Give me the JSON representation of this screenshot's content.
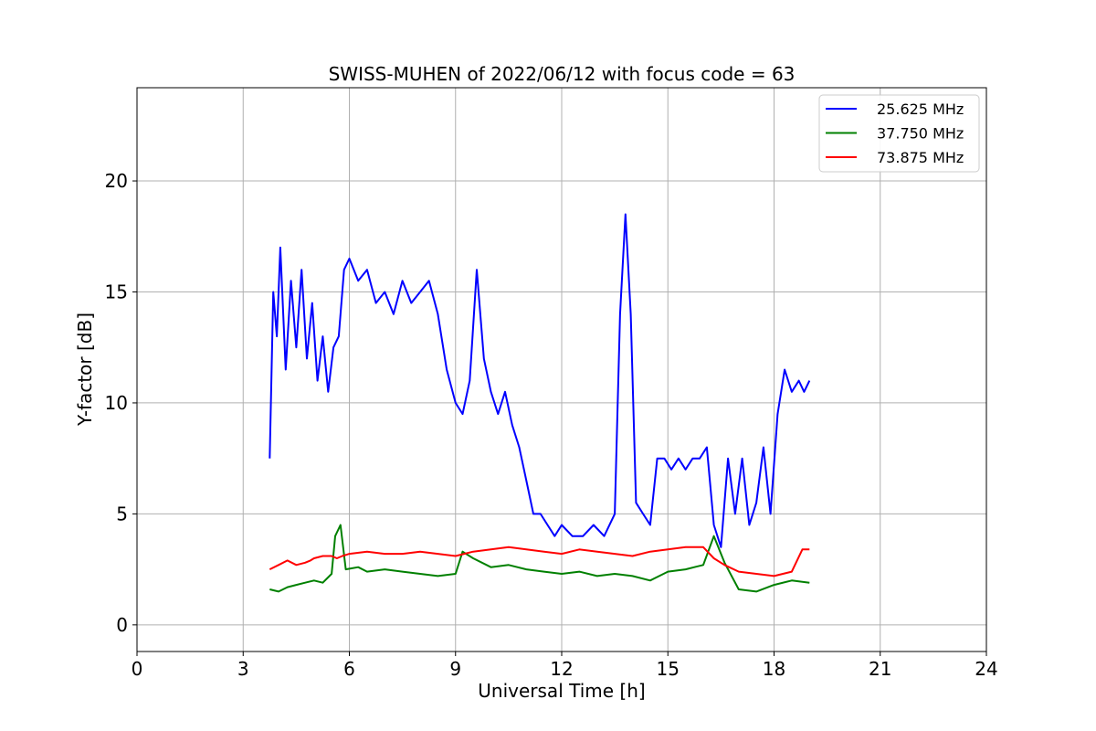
{
  "chart_data": {
    "type": "line",
    "title": "SWISS-MUHEN of 2022/06/12 with focus code = 63",
    "xlabel": "Universal Time [h]",
    "ylabel": "Y-factor [dB]",
    "xlim": [
      0,
      24
    ],
    "ylim": [
      -1.2,
      24.2
    ],
    "xticks": [
      0,
      3,
      6,
      9,
      12,
      15,
      18,
      21,
      24
    ],
    "yticks": [
      0,
      5,
      10,
      15,
      20
    ],
    "grid": true,
    "legend_position": "top-right",
    "series": [
      {
        "name": "25.625 MHz",
        "color": "#0000ff",
        "x": [
          3.75,
          3.85,
          3.95,
          4.05,
          4.2,
          4.35,
          4.5,
          4.65,
          4.8,
          4.95,
          5.1,
          5.25,
          5.4,
          5.55,
          5.7,
          5.85,
          6.0,
          6.25,
          6.5,
          6.75,
          7.0,
          7.25,
          7.5,
          7.75,
          8.0,
          8.25,
          8.5,
          8.75,
          9.0,
          9.2,
          9.4,
          9.6,
          9.8,
          10.0,
          10.2,
          10.4,
          10.6,
          10.8,
          11.0,
          11.2,
          11.4,
          11.6,
          11.8,
          12.0,
          12.3,
          12.6,
          12.9,
          13.2,
          13.5,
          13.65,
          13.8,
          13.95,
          14.1,
          14.3,
          14.5,
          14.7,
          14.9,
          15.1,
          15.3,
          15.5,
          15.7,
          15.9,
          16.1,
          16.3,
          16.5,
          16.7,
          16.9,
          17.1,
          17.3,
          17.5,
          17.7,
          17.9,
          18.1,
          18.3,
          18.5,
          18.7,
          18.85,
          19.0
        ],
        "y": [
          7.5,
          15.0,
          13.0,
          17.0,
          11.5,
          15.5,
          12.5,
          16.0,
          12.0,
          14.5,
          11.0,
          13.0,
          10.5,
          12.5,
          13.0,
          16.0,
          16.5,
          15.5,
          16.0,
          14.5,
          15.0,
          14.0,
          15.5,
          14.5,
          15.0,
          15.5,
          14.0,
          11.5,
          10.0,
          9.5,
          11.0,
          16.0,
          12.0,
          10.5,
          9.5,
          10.5,
          9.0,
          8.0,
          6.5,
          5.0,
          5.0,
          4.5,
          4.0,
          4.5,
          4.0,
          4.0,
          4.5,
          4.0,
          5.0,
          14.0,
          18.5,
          14.0,
          5.5,
          5.0,
          4.5,
          7.5,
          7.5,
          7.0,
          7.5,
          7.0,
          7.5,
          7.5,
          8.0,
          4.5,
          3.5,
          7.5,
          5.0,
          7.5,
          4.5,
          5.5,
          8.0,
          5.0,
          9.5,
          11.5,
          10.5,
          11.0,
          10.5,
          11.0
        ]
      },
      {
        "name": "37.750 MHz",
        "color": "#008000",
        "x": [
          3.75,
          4.0,
          4.25,
          4.5,
          4.75,
          5.0,
          5.25,
          5.5,
          5.6,
          5.75,
          5.9,
          6.25,
          6.5,
          7.0,
          7.5,
          8.0,
          8.5,
          9.0,
          9.2,
          9.5,
          10.0,
          10.5,
          11.0,
          11.5,
          12.0,
          12.5,
          13.0,
          13.5,
          14.0,
          14.5,
          15.0,
          15.5,
          16.0,
          16.3,
          16.6,
          17.0,
          17.5,
          18.0,
          18.5,
          19.0
        ],
        "y": [
          1.6,
          1.5,
          1.7,
          1.8,
          1.9,
          2.0,
          1.9,
          2.3,
          4.0,
          4.5,
          2.5,
          2.6,
          2.4,
          2.5,
          2.4,
          2.3,
          2.2,
          2.3,
          3.3,
          3.0,
          2.6,
          2.7,
          2.5,
          2.4,
          2.3,
          2.4,
          2.2,
          2.3,
          2.2,
          2.0,
          2.4,
          2.5,
          2.7,
          4.0,
          2.8,
          1.6,
          1.5,
          1.8,
          2.0,
          1.9
        ]
      },
      {
        "name": "73.875 MHz",
        "color": "#ff0000",
        "x": [
          3.75,
          4.0,
          4.25,
          4.5,
          4.75,
          4.9,
          5.0,
          5.25,
          5.5,
          5.65,
          5.8,
          6.0,
          6.5,
          7.0,
          7.5,
          8.0,
          8.5,
          9.0,
          9.5,
          10.0,
          10.5,
          11.0,
          11.5,
          12.0,
          12.5,
          13.0,
          13.5,
          14.0,
          14.5,
          15.0,
          15.5,
          16.0,
          16.3,
          16.6,
          17.0,
          17.5,
          18.0,
          18.5,
          18.8,
          19.0
        ],
        "y": [
          2.5,
          2.7,
          2.9,
          2.7,
          2.8,
          2.9,
          3.0,
          3.1,
          3.1,
          3.0,
          3.1,
          3.2,
          3.3,
          3.2,
          3.2,
          3.3,
          3.2,
          3.1,
          3.3,
          3.4,
          3.5,
          3.4,
          3.3,
          3.2,
          3.4,
          3.3,
          3.2,
          3.1,
          3.3,
          3.4,
          3.5,
          3.5,
          3.0,
          2.7,
          2.4,
          2.3,
          2.2,
          2.4,
          3.4,
          3.4
        ]
      }
    ]
  }
}
